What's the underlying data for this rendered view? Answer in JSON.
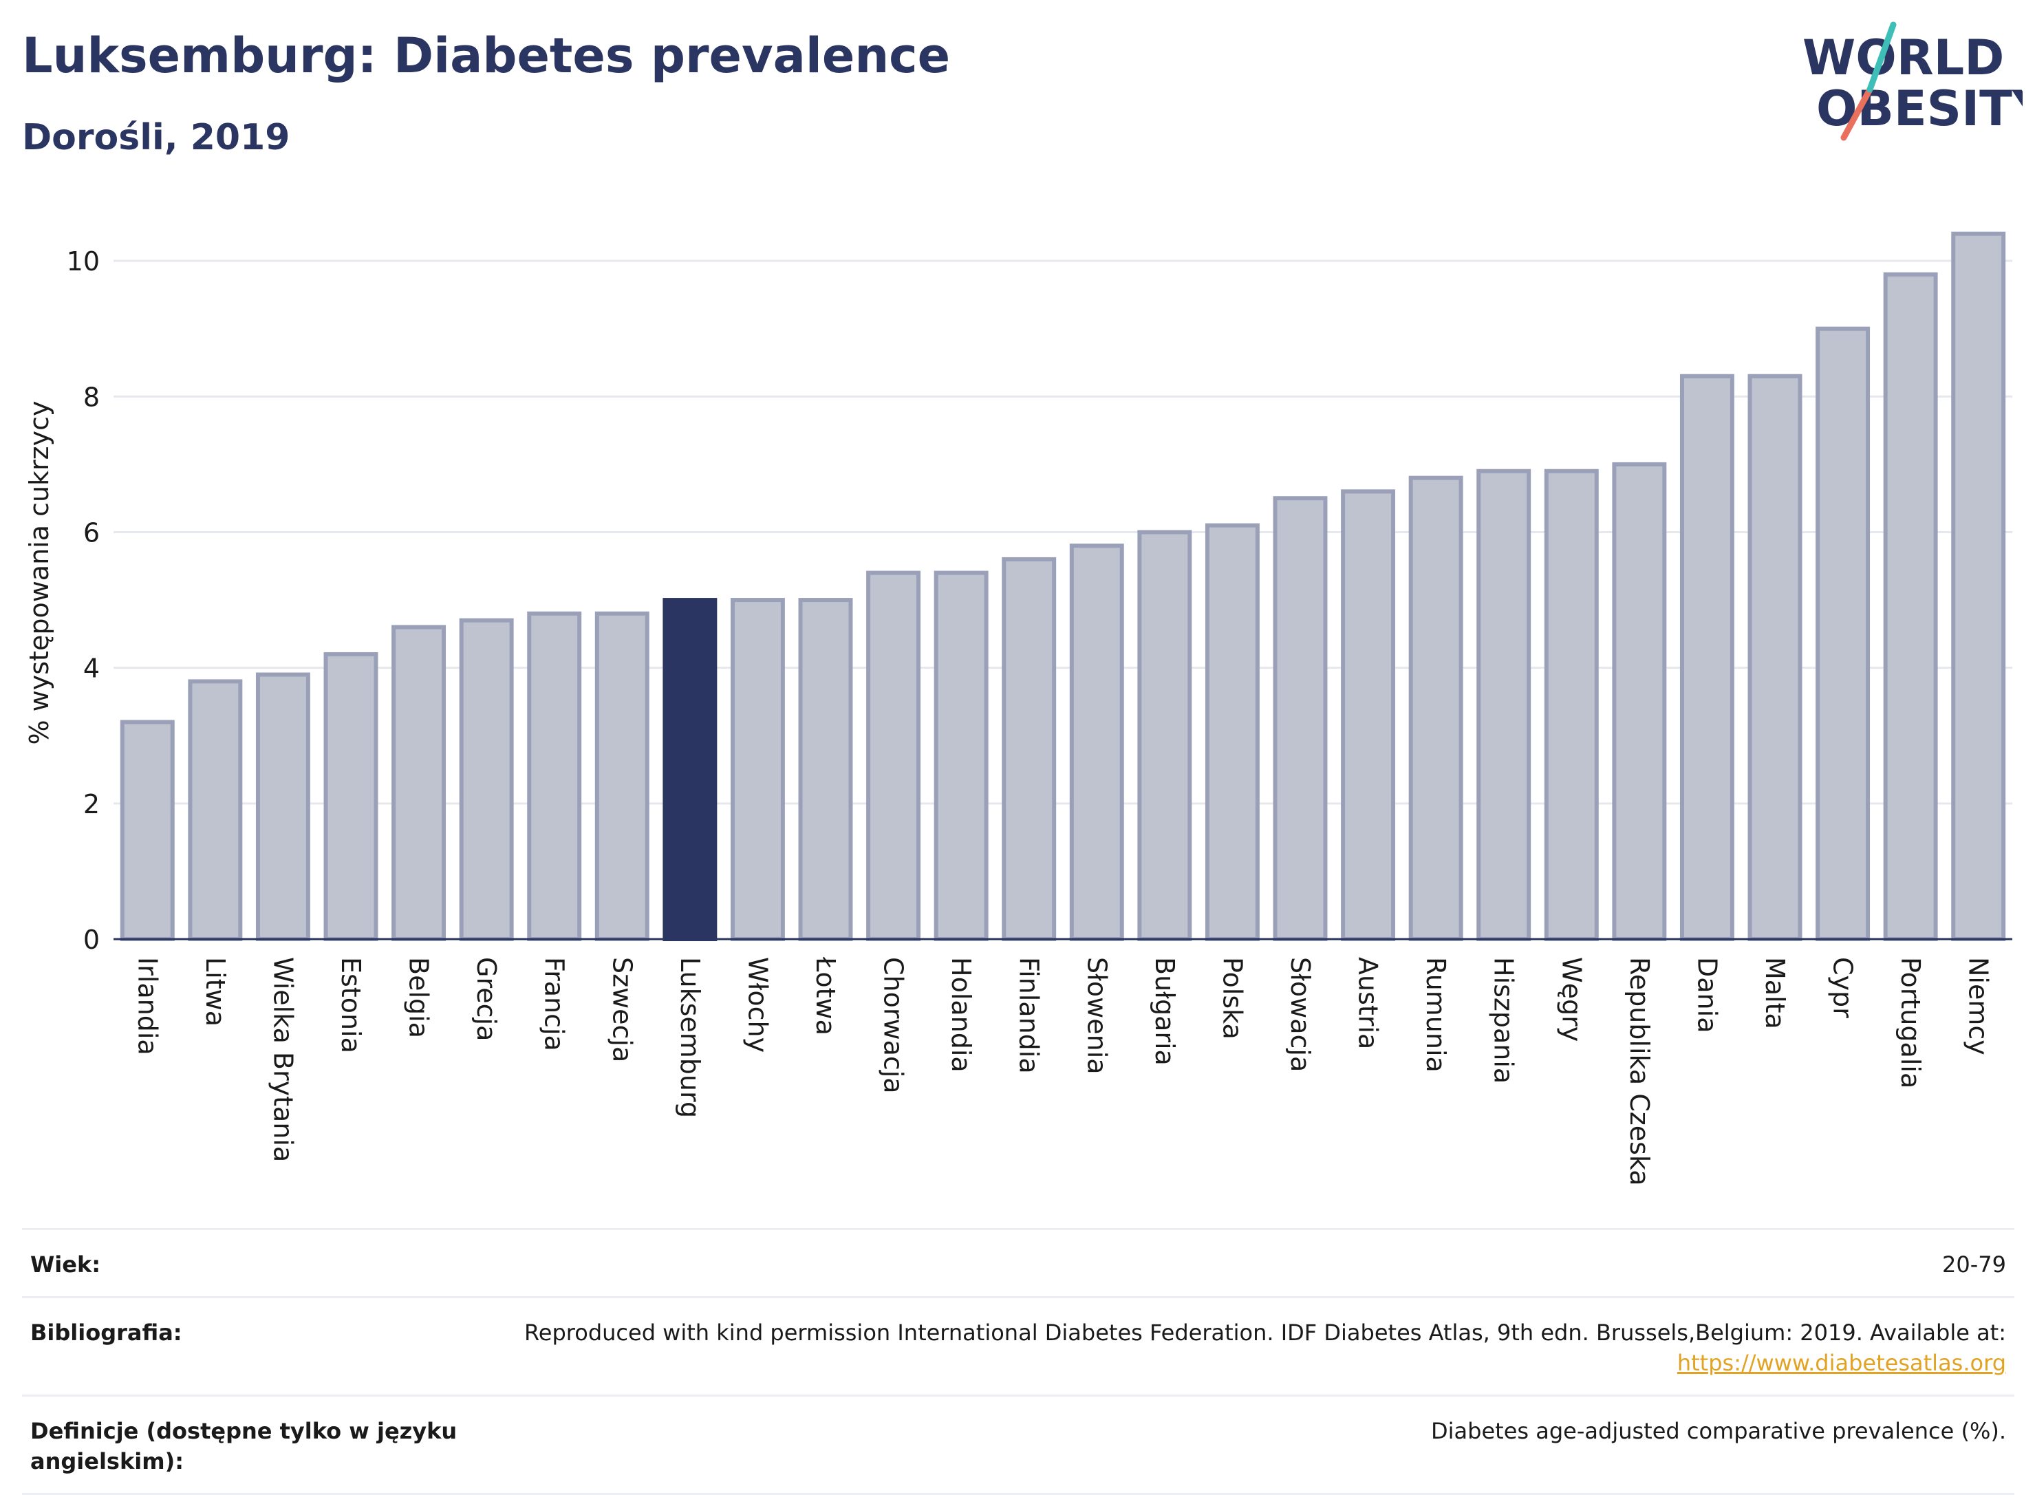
{
  "header": {
    "title": "Luksemburg: Diabetes prevalence",
    "subtitle": "Dorośli, 2019"
  },
  "logo": {
    "line1": "WORLD",
    "line2": "OBESITY",
    "colors": {
      "text": "#2a3561",
      "accent1": "#3dbfb8",
      "accent2": "#e8705d"
    }
  },
  "colors": {
    "bar": "#bfc2cf",
    "bar_stroke": "#9aa0b8",
    "highlight": "#2a3561",
    "grid": "#e6e8ef",
    "axis": "#2a3561"
  },
  "chart_data": {
    "type": "bar",
    "ylabel": "% występowania cukrzycy",
    "ylim": [
      0,
      10.6
    ],
    "yticks": [
      0,
      2,
      4,
      6,
      8,
      10
    ],
    "highlight": "Luksemburg",
    "categories": [
      "Irlandia",
      "Litwa",
      "Wielka Brytania",
      "Estonia",
      "Belgia",
      "Grecja",
      "Francja",
      "Szwecja",
      "Luksemburg",
      "Włochy",
      "Łotwa",
      "Chorwacja",
      "Holandia",
      "Finlandia",
      "Słowenia",
      "Bułgaria",
      "Polska",
      "Słowacja",
      "Austria",
      "Rumunia",
      "Hiszpania",
      "Węgry",
      "Republika Czeska",
      "Dania",
      "Malta",
      "Cypr",
      "Portugalia",
      "Niemcy"
    ],
    "values": [
      3.2,
      3.8,
      3.9,
      4.2,
      4.6,
      4.7,
      4.8,
      4.8,
      5.0,
      5.0,
      5.0,
      5.4,
      5.4,
      5.6,
      5.8,
      6.0,
      6.1,
      6.5,
      6.6,
      6.8,
      6.9,
      6.9,
      7.0,
      8.3,
      8.3,
      9.0,
      9.8,
      10.4
    ]
  },
  "meta": {
    "age_label": "Wiek:",
    "age_value": "20-79",
    "bib_label": "Bibliografia:",
    "bib_value": "Reproduced with kind permission International Diabetes Federation. IDF Diabetes Atlas, 9th edn. Brussels,Belgium: 2019. Available at:",
    "bib_link": "https://www.diabetesatlas.org",
    "def_label": "Definicje (dostępne tylko w języku angielskim):",
    "def_value": "Diabetes age-adjusted comparative prevalence (%)."
  }
}
